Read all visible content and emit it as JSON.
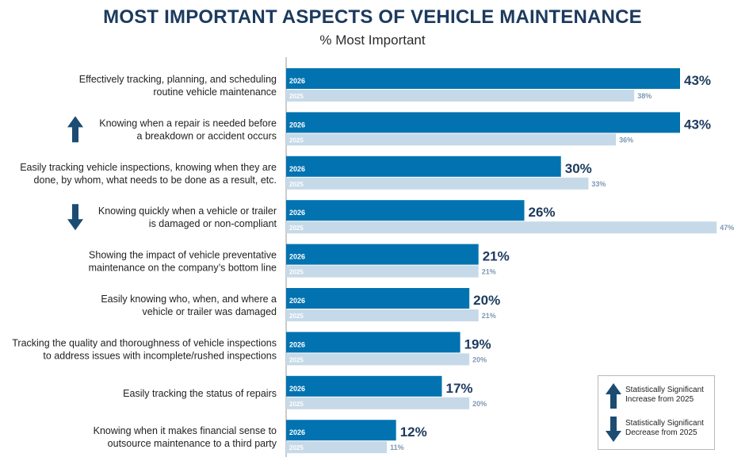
{
  "title": "MOST IMPORTANT ASPECTS OF VEHICLE MAINTENANCE",
  "subtitle": "% Most Important",
  "colors": {
    "bar_2026": "#0273b0",
    "bar_2025": "#c6d9e8",
    "label_2026": "#1c3a5e",
    "label_2025": "#7d98b4",
    "arrow": "#1c4c72",
    "axis": "#9a9a9a"
  },
  "legend": {
    "increase_label": "Statistically Significant Increase from 2025",
    "decrease_label": "Statistically Significant Decrease from 2025",
    "increase_icon": "arrow-up-icon",
    "decrease_icon": "arrow-down-icon"
  },
  "chart_data": {
    "type": "bar",
    "orientation": "horizontal",
    "title": "MOST IMPORTANT ASPECTS OF VEHICLE MAINTENANCE",
    "subtitle": "% Most Important",
    "xlim": [
      0,
      47
    ],
    "grid": false,
    "legend_position": "bottom-right",
    "series": [
      {
        "name": "2026",
        "values": [
          43,
          43,
          30,
          26,
          21,
          20,
          19,
          17,
          12
        ]
      },
      {
        "name": "2025",
        "values": [
          38,
          36,
          33,
          47,
          21,
          21,
          20,
          20,
          11
        ]
      }
    ],
    "value_labels_2026": [
      "43%",
      "43%",
      "30%",
      "26%",
      "21%",
      "20%",
      "19%",
      "17%",
      "12%"
    ],
    "value_labels_2025": [
      "38%",
      "36%",
      "33%",
      "47%",
      "21%",
      "21%",
      "20%",
      "20%",
      "11%"
    ],
    "categories": [
      [
        "Effectively tracking, planning, and scheduling",
        "routine vehicle maintenance"
      ],
      [
        "Knowing when a repair is needed before",
        "a breakdown or accident occurs"
      ],
      [
        "Easily tracking vehicle inspections, knowing when they are",
        "done, by whom, what needs to be done as a result, etc."
      ],
      [
        "Knowing quickly when a vehicle or trailer",
        "is damaged or non-compliant"
      ],
      [
        "Showing the impact of vehicle preventative",
        "maintenance on the company’s bottom line"
      ],
      [
        "Easily knowing who, when, and where a",
        "vehicle or trailer was damaged"
      ],
      [
        "Tracking the quality and thoroughness of vehicle inspections",
        "to address issues with incomplete/rushed inspections"
      ],
      [
        "Easily tracking the status of repairs"
      ],
      [
        "Knowing when it makes financial sense to",
        "outsource maintenance to a third party"
      ]
    ],
    "significance": [
      "none",
      "increase",
      "none",
      "decrease",
      "none",
      "none",
      "none",
      "none",
      "none"
    ]
  }
}
